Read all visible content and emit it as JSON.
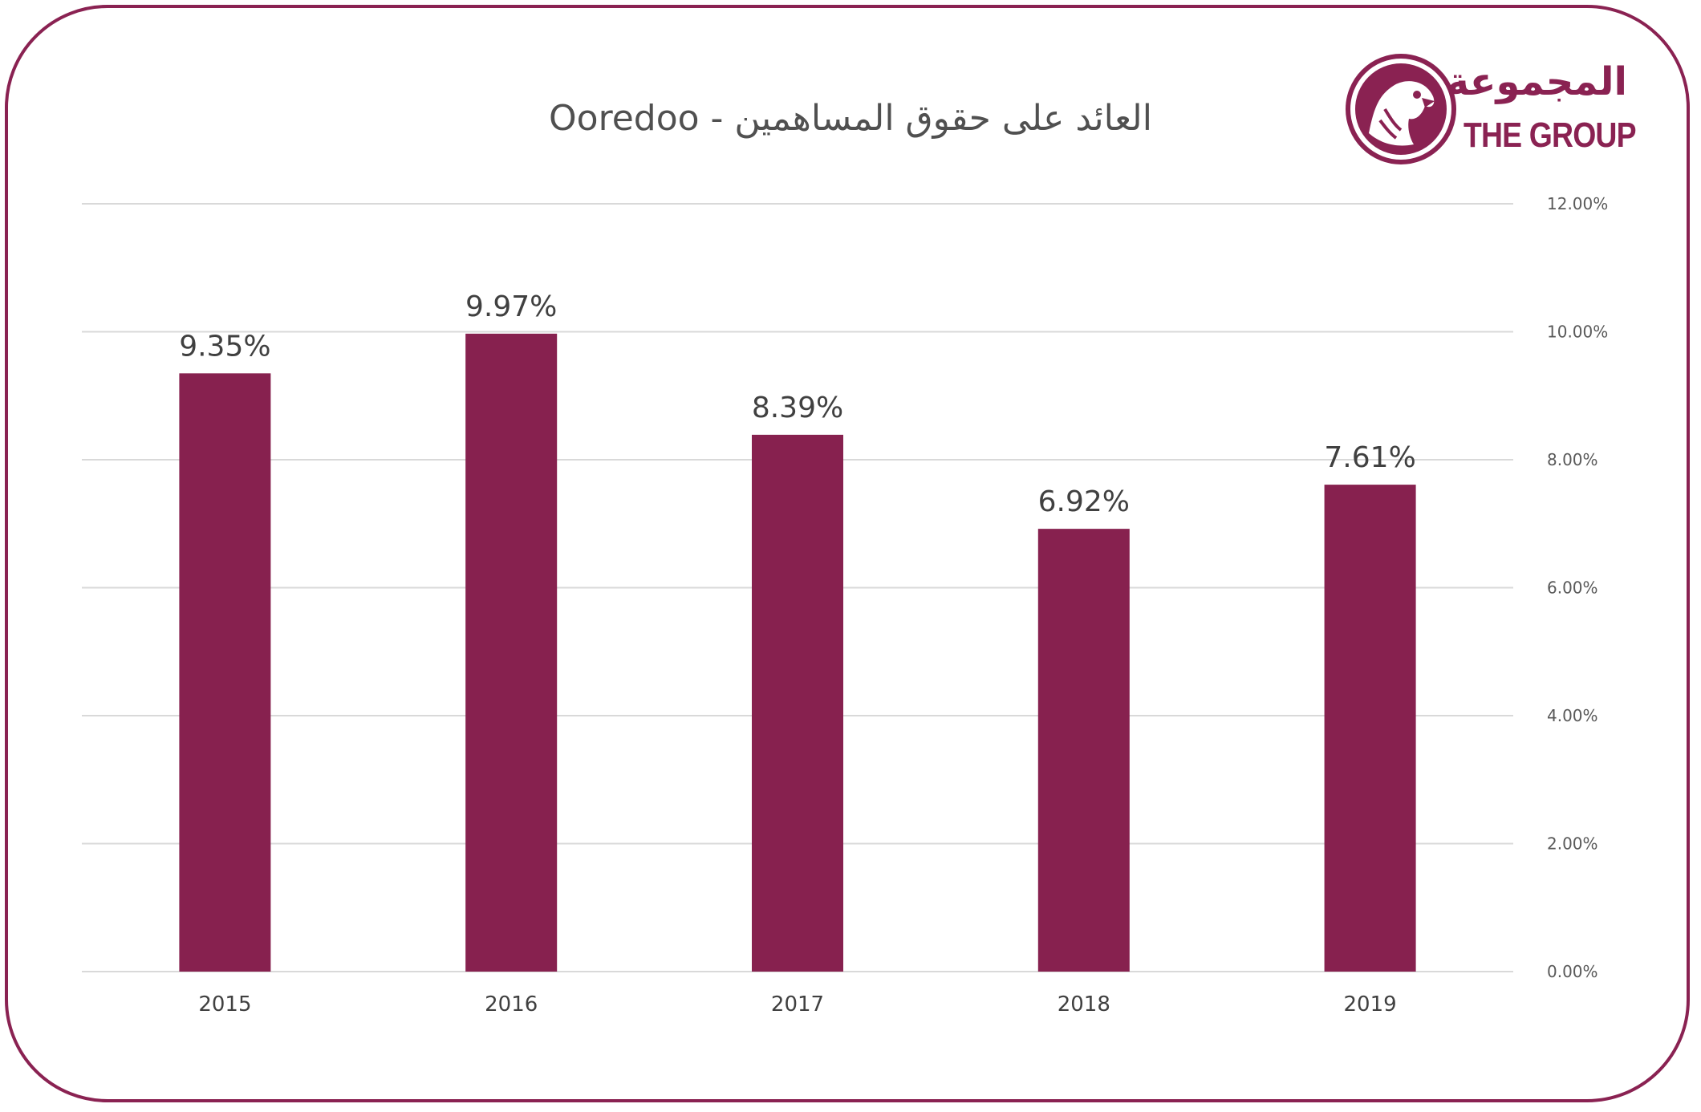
{
  "logo": {
    "arabic": "المجموعة",
    "english": "THE GROUP"
  },
  "colors": {
    "accent": "#87214f",
    "grid": "#d9d9d9",
    "frame": "#8a2252"
  },
  "chart_data": {
    "type": "bar",
    "title": "العائد على حقوق المساهمين - Ooredoo",
    "categories": [
      "2015",
      "2016",
      "2017",
      "2018",
      "2019"
    ],
    "values": [
      9.35,
      9.97,
      8.39,
      6.92,
      7.61
    ],
    "value_labels": [
      "9.35%",
      "9.97%",
      "8.39%",
      "6.92%",
      "7.61%"
    ],
    "y_ticks": [
      "0.00%",
      "2.00%",
      "4.00%",
      "6.00%",
      "8.00%",
      "10.00%",
      "12.00%"
    ],
    "ylim": [
      0,
      12
    ],
    "y_axis_side": "right",
    "grid": true,
    "legend": "none"
  }
}
